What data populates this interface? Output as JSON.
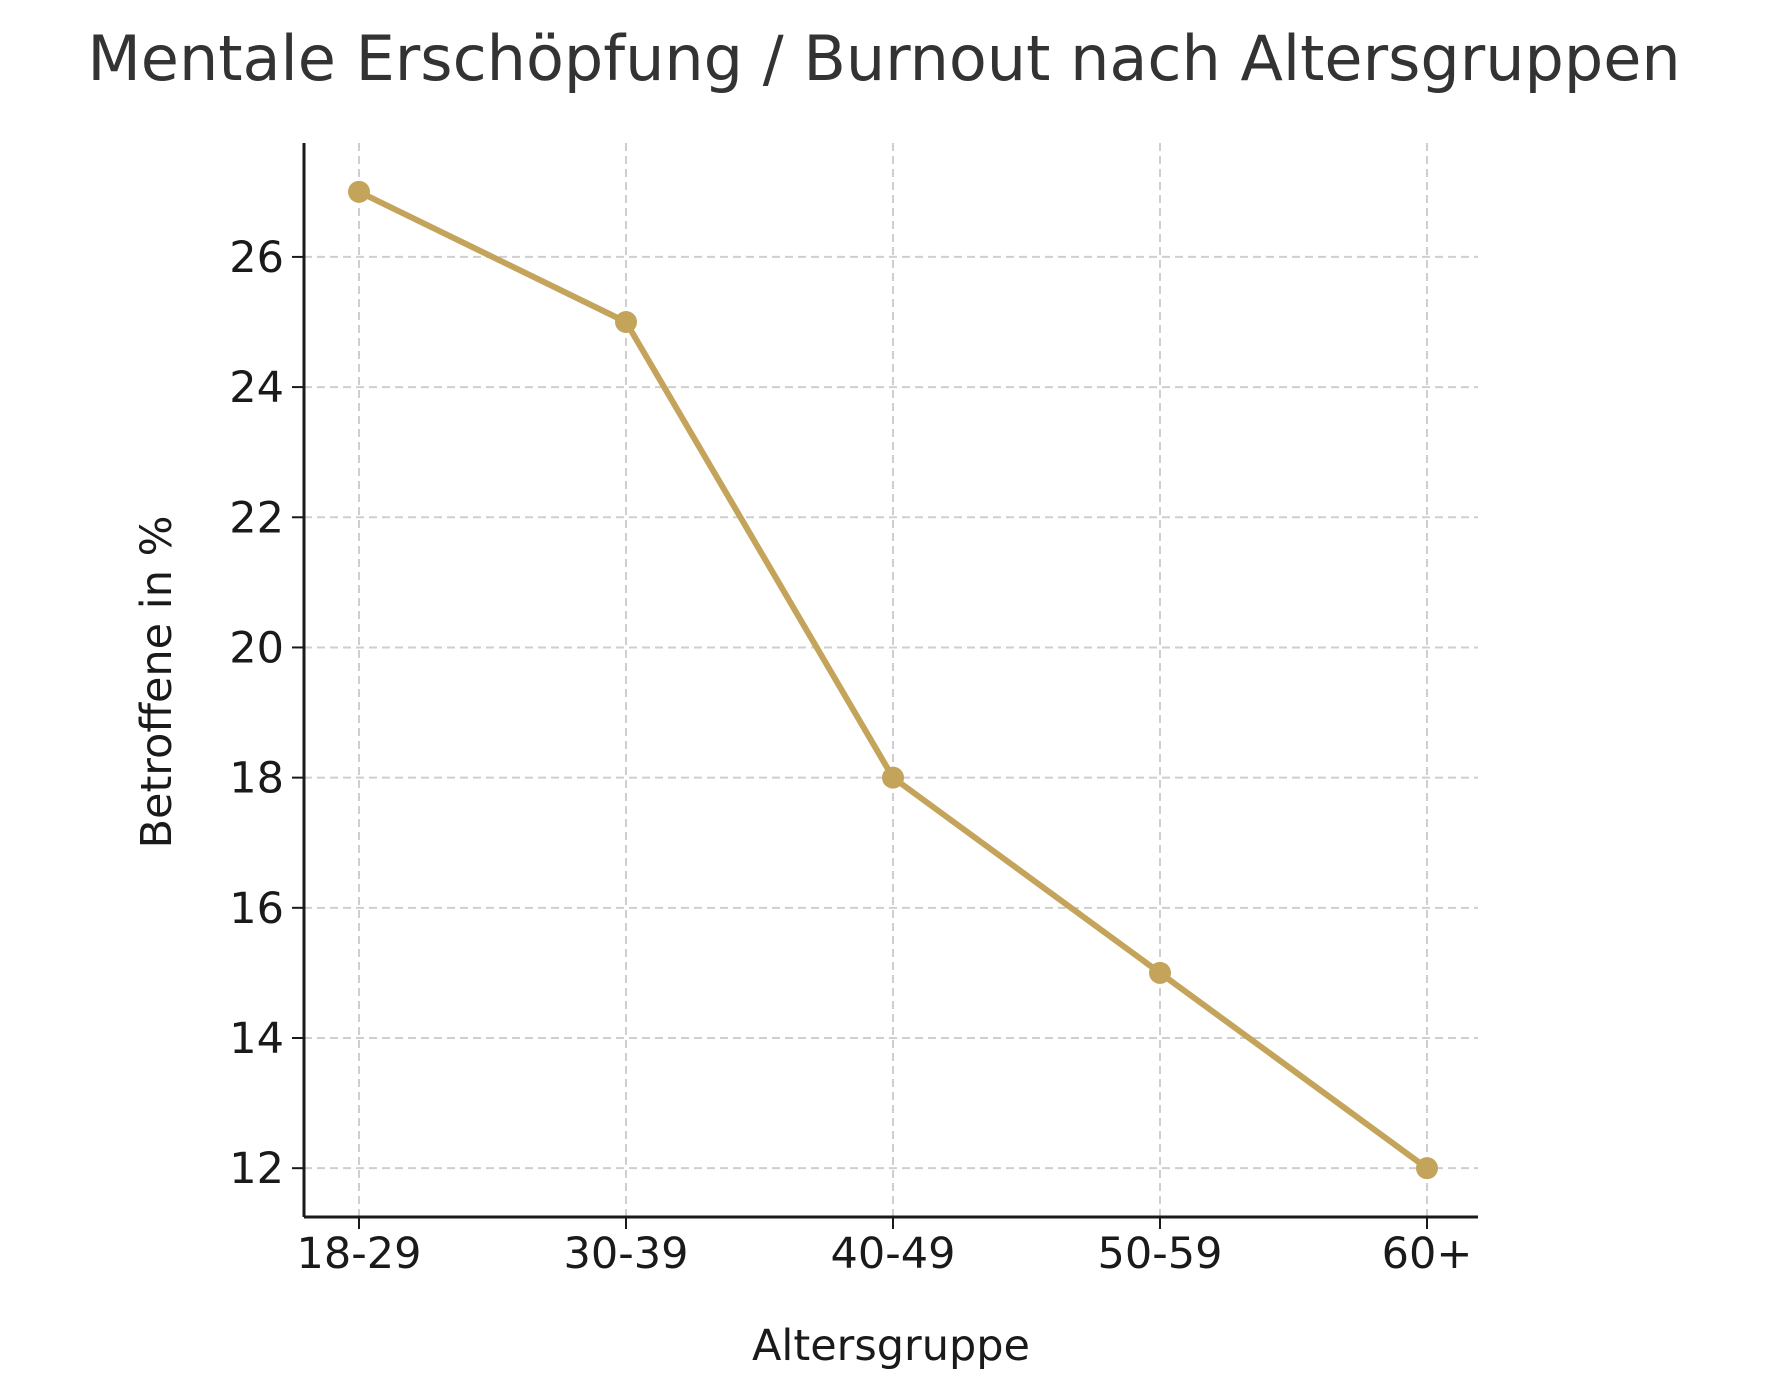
{
  "chart_data": {
    "type": "line",
    "title": "Mentale Erschöpfung / Burnout nach Altersgruppen",
    "xlabel": "Altersgruppe",
    "ylabel": "Betroffene in %",
    "categories": [
      "18-29",
      "30-39",
      "40-49",
      "50-59",
      "60+"
    ],
    "series": [
      {
        "values": [
          27,
          25,
          18,
          15,
          12
        ],
        "color": "#c4a35a"
      }
    ],
    "ylim": [
      11.25,
      27.75
    ],
    "yticks": [
      12,
      14,
      16,
      18,
      20,
      22,
      24,
      26
    ],
    "grid": true,
    "legend": "none"
  }
}
